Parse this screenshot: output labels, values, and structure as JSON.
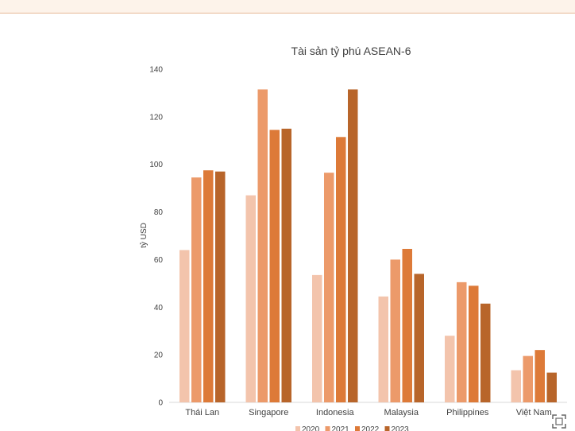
{
  "chart_data": {
    "type": "bar",
    "title": "Tài sản tỷ phú ASEAN-6",
    "xlabel": "",
    "ylabel": "tỷ USD",
    "ylim": [
      0,
      140
    ],
    "yticks": [
      "0",
      "20",
      "40",
      "60",
      "80",
      "100",
      "120",
      "140"
    ],
    "grid": false,
    "legend_position": "bottom",
    "categories": [
      "Thái Lan",
      "Singapore",
      "Indonesia",
      "Malaysia",
      "Philippines",
      "Việt Nam"
    ],
    "series": [
      {
        "name": "2020",
        "color": "#f3c4ac",
        "values": [
          64,
          87,
          53.5,
          44.5,
          28,
          13.5
        ]
      },
      {
        "name": "2021",
        "color": "#ec9a6a",
        "values": [
          94.5,
          131.5,
          96.5,
          60,
          50.5,
          19.5
        ]
      },
      {
        "name": "2022",
        "color": "#dd7a38",
        "values": [
          97.5,
          114.5,
          111.5,
          64.5,
          49,
          22
        ]
      },
      {
        "name": "2023",
        "color": "#b8652a",
        "values": [
          97,
          115,
          131.5,
          54,
          41.5,
          12.5
        ]
      }
    ]
  },
  "icons": {
    "corner": "fullscreen-icon"
  }
}
